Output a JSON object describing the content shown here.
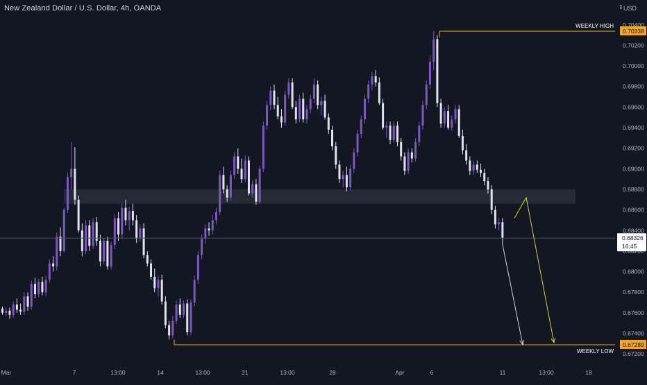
{
  "header": {
    "title": "New Zealand Dollar / U.S. Dollar, 4h, OANDA",
    "currency": "USD",
    "currency_icon": "caret-up-down-icon"
  },
  "colors": {
    "background": "#131722",
    "bull_candle": "#7e57c2",
    "bear_candle": "#e0e3eb",
    "axis_text": "#b2b5be",
    "level_line": "#f5a623",
    "level_tag": "#f5a623",
    "last_price_line": "#4c525e",
    "zone_fill": "#2a2e39",
    "arrow_white": "#d1d4dc",
    "arrow_yellow": "#d6d62e"
  },
  "chart_data": {
    "type": "candlestick",
    "title": "New Zealand Dollar / U.S. Dollar, 4h, OANDA",
    "grid": false,
    "ylim": [
      0.6712,
      0.7052
    ],
    "y_ticks": [
      "0.67200",
      "0.67400",
      "0.67600",
      "0.67800",
      "0.68000",
      "0.68200",
      "0.68400",
      "0.68600",
      "0.68800",
      "0.69000",
      "0.69200",
      "0.69400",
      "0.69600",
      "0.69800",
      "0.70000",
      "0.70200",
      "0.70400"
    ],
    "x_ticks": [
      "Mar",
      "7",
      "13:00",
      "14",
      "13:00",
      "21",
      "13:00",
      "28",
      "Apr",
      "6",
      "11",
      "13:00",
      "18"
    ],
    "last_price": {
      "value": "0.68326",
      "countdown": "16:45"
    },
    "levels": [
      {
        "name": "WEEKLY HIGH",
        "value": 0.70338,
        "tag": "0.70338"
      },
      {
        "name": "WEEKLY LOW",
        "value": 0.67289,
        "tag": "0.67289"
      }
    ],
    "zone": {
      "low": 0.6866,
      "high": 0.688
    },
    "arrows": [
      {
        "color": "white",
        "from": 0.6826,
        "to": 0.6729
      },
      {
        "color": "yellow",
        "path": [
          0.6852,
          0.6872,
          0.6731
        ]
      }
    ],
    "candles": [
      [
        0.6764,
        0.6766,
        0.6758,
        0.676
      ],
      [
        0.676,
        0.6765,
        0.6757,
        0.6762
      ],
      [
        0.6762,
        0.6765,
        0.6754,
        0.6758
      ],
      [
        0.6758,
        0.6771,
        0.6755,
        0.6768
      ],
      [
        0.6768,
        0.6774,
        0.676,
        0.6763
      ],
      [
        0.6763,
        0.6769,
        0.6758,
        0.6761
      ],
      [
        0.6761,
        0.678,
        0.6758,
        0.6776
      ],
      [
        0.6776,
        0.678,
        0.6762,
        0.6766
      ],
      [
        0.6766,
        0.6791,
        0.6763,
        0.6788
      ],
      [
        0.6788,
        0.6794,
        0.6774,
        0.6778
      ],
      [
        0.6778,
        0.6793,
        0.6775,
        0.679
      ],
      [
        0.679,
        0.6795,
        0.6777,
        0.678
      ],
      [
        0.678,
        0.6796,
        0.6776,
        0.6792
      ],
      [
        0.6792,
        0.6812,
        0.6789,
        0.6808
      ],
      [
        0.6808,
        0.6815,
        0.68,
        0.6805
      ],
      [
        0.6805,
        0.6838,
        0.6801,
        0.6834
      ],
      [
        0.6834,
        0.6843,
        0.6815,
        0.682
      ],
      [
        0.682,
        0.6862,
        0.6818,
        0.686
      ],
      [
        0.686,
        0.6896,
        0.6857,
        0.6892
      ],
      [
        0.6892,
        0.6926,
        0.688,
        0.69
      ],
      [
        0.69,
        0.6921,
        0.6865,
        0.687
      ],
      [
        0.687,
        0.6874,
        0.6838,
        0.684
      ],
      [
        0.684,
        0.6847,
        0.6815,
        0.682
      ],
      [
        0.682,
        0.685,
        0.6817,
        0.6845
      ],
      [
        0.6845,
        0.685,
        0.682,
        0.6825
      ],
      [
        0.6825,
        0.6852,
        0.6822,
        0.6848
      ],
      [
        0.6848,
        0.6853,
        0.6825,
        0.683
      ],
      [
        0.683,
        0.6836,
        0.6805,
        0.681
      ],
      [
        0.681,
        0.6833,
        0.6807,
        0.683
      ],
      [
        0.683,
        0.6834,
        0.6802,
        0.6805
      ],
      [
        0.6805,
        0.6829,
        0.6802,
        0.6826
      ],
      [
        0.6826,
        0.6856,
        0.6822,
        0.6852
      ],
      [
        0.6852,
        0.6858,
        0.683,
        0.6836
      ],
      [
        0.6836,
        0.6866,
        0.6832,
        0.6862
      ],
      [
        0.6862,
        0.687,
        0.6845,
        0.685
      ],
      [
        0.685,
        0.6863,
        0.684,
        0.6859
      ],
      [
        0.6859,
        0.6866,
        0.6845,
        0.685
      ],
      [
        0.685,
        0.6855,
        0.6828,
        0.6832
      ],
      [
        0.6832,
        0.6846,
        0.6829,
        0.6842
      ],
      [
        0.6842,
        0.6847,
        0.6813,
        0.6816
      ],
      [
        0.6816,
        0.682,
        0.6805,
        0.6808
      ],
      [
        0.6808,
        0.6812,
        0.6792,
        0.6795
      ],
      [
        0.6795,
        0.6803,
        0.678,
        0.6784
      ],
      [
        0.6784,
        0.6796,
        0.6776,
        0.6792
      ],
      [
        0.6792,
        0.6797,
        0.6768,
        0.6771
      ],
      [
        0.6771,
        0.6776,
        0.6745,
        0.6748
      ],
      [
        0.6748,
        0.6752,
        0.6734,
        0.6738
      ],
      [
        0.6738,
        0.6757,
        0.6735,
        0.6752
      ],
      [
        0.6752,
        0.6772,
        0.6749,
        0.6768
      ],
      [
        0.6768,
        0.6774,
        0.6755,
        0.6758
      ],
      [
        0.6758,
        0.6772,
        0.6755,
        0.6769
      ],
      [
        0.6769,
        0.6773,
        0.6738,
        0.6741
      ],
      [
        0.6741,
        0.6773,
        0.6738,
        0.677
      ],
      [
        0.677,
        0.6796,
        0.6766,
        0.6792
      ],
      [
        0.6792,
        0.682,
        0.6788,
        0.6816
      ],
      [
        0.6816,
        0.6836,
        0.6812,
        0.6832
      ],
      [
        0.6832,
        0.6846,
        0.6827,
        0.6842
      ],
      [
        0.6842,
        0.6848,
        0.6835,
        0.684
      ],
      [
        0.684,
        0.6855,
        0.6836,
        0.685
      ],
      [
        0.685,
        0.6862,
        0.6846,
        0.6858
      ],
      [
        0.6858,
        0.6898,
        0.6855,
        0.6894
      ],
      [
        0.6894,
        0.6902,
        0.6876,
        0.688
      ],
      [
        0.688,
        0.6884,
        0.6868,
        0.6872
      ],
      [
        0.6872,
        0.6898,
        0.6869,
        0.6894
      ],
      [
        0.6894,
        0.6916,
        0.689,
        0.6912
      ],
      [
        0.6912,
        0.692,
        0.6895,
        0.69
      ],
      [
        0.69,
        0.691,
        0.6886,
        0.689
      ],
      [
        0.689,
        0.6913,
        0.6887,
        0.6908
      ],
      [
        0.6908,
        0.6912,
        0.6874,
        0.6876
      ],
      [
        0.6876,
        0.6889,
        0.6872,
        0.6885
      ],
      [
        0.6885,
        0.689,
        0.6865,
        0.6868
      ],
      [
        0.6868,
        0.6903,
        0.6866,
        0.69
      ],
      [
        0.69,
        0.6946,
        0.6897,
        0.6942
      ],
      [
        0.6942,
        0.6966,
        0.6938,
        0.6962
      ],
      [
        0.6962,
        0.698,
        0.6957,
        0.6976
      ],
      [
        0.6976,
        0.6982,
        0.6958,
        0.6962
      ],
      [
        0.6962,
        0.697,
        0.6948,
        0.6951
      ],
      [
        0.6951,
        0.6958,
        0.694,
        0.6945
      ],
      [
        0.6945,
        0.6976,
        0.6942,
        0.6972
      ],
      [
        0.6972,
        0.6988,
        0.6968,
        0.6984
      ],
      [
        0.6984,
        0.6988,
        0.6958,
        0.696
      ],
      [
        0.696,
        0.6966,
        0.6944,
        0.6948
      ],
      [
        0.6948,
        0.6972,
        0.6945,
        0.6968
      ],
      [
        0.6968,
        0.6974,
        0.6945,
        0.6948
      ],
      [
        0.6948,
        0.6962,
        0.6944,
        0.6958
      ],
      [
        0.6958,
        0.6972,
        0.6954,
        0.6968
      ],
      [
        0.6968,
        0.6988,
        0.6964,
        0.6982
      ],
      [
        0.6982,
        0.6986,
        0.6958,
        0.6962
      ],
      [
        0.6962,
        0.697,
        0.6952,
        0.6966
      ],
      [
        0.6966,
        0.6972,
        0.6948,
        0.695
      ],
      [
        0.695,
        0.6954,
        0.6934,
        0.6938
      ],
      [
        0.6938,
        0.6942,
        0.6918,
        0.6922
      ],
      [
        0.6922,
        0.6926,
        0.69,
        0.6904
      ],
      [
        0.6904,
        0.6908,
        0.6886,
        0.689
      ],
      [
        0.689,
        0.6898,
        0.6882,
        0.6894
      ],
      [
        0.6894,
        0.6902,
        0.6878,
        0.6882
      ],
      [
        0.6882,
        0.6904,
        0.6879,
        0.69
      ],
      [
        0.69,
        0.692,
        0.6896,
        0.6916
      ],
      [
        0.6916,
        0.6938,
        0.6912,
        0.6934
      ],
      [
        0.6934,
        0.6952,
        0.693,
        0.6948
      ],
      [
        0.6948,
        0.6972,
        0.6944,
        0.6968
      ],
      [
        0.6968,
        0.6986,
        0.6964,
        0.6982
      ],
      [
        0.6982,
        0.6994,
        0.6976,
        0.699
      ],
      [
        0.699,
        0.6996,
        0.698,
        0.6984
      ],
      [
        0.6984,
        0.6989,
        0.6962,
        0.6964
      ],
      [
        0.6964,
        0.6968,
        0.6938,
        0.694
      ],
      [
        0.694,
        0.6946,
        0.693,
        0.6942
      ],
      [
        0.6942,
        0.6946,
        0.6924,
        0.6928
      ],
      [
        0.6928,
        0.6946,
        0.6925,
        0.6942
      ],
      [
        0.6942,
        0.6946,
        0.6922,
        0.6926
      ],
      [
        0.6926,
        0.693,
        0.6908,
        0.6912
      ],
      [
        0.6912,
        0.6916,
        0.6894,
        0.6898
      ],
      [
        0.6898,
        0.692,
        0.6895,
        0.6916
      ],
      [
        0.6916,
        0.692,
        0.6906,
        0.691
      ],
      [
        0.691,
        0.693,
        0.6907,
        0.6926
      ],
      [
        0.6926,
        0.6946,
        0.6922,
        0.6942
      ],
      [
        0.6942,
        0.6966,
        0.6938,
        0.6962
      ],
      [
        0.6962,
        0.6986,
        0.6958,
        0.6982
      ],
      [
        0.6982,
        0.701,
        0.6978,
        0.7004
      ],
      [
        0.7004,
        0.7034,
        0.6996,
        0.7026
      ],
      [
        0.7026,
        0.703,
        0.696,
        0.6964
      ],
      [
        0.6964,
        0.6968,
        0.694,
        0.6944
      ],
      [
        0.6944,
        0.696,
        0.694,
        0.6956
      ],
      [
        0.6956,
        0.6962,
        0.6938,
        0.694
      ],
      [
        0.694,
        0.6952,
        0.6937,
        0.6948
      ],
      [
        0.6948,
        0.6962,
        0.6944,
        0.6958
      ],
      [
        0.6958,
        0.6962,
        0.693,
        0.6932
      ],
      [
        0.6932,
        0.6938,
        0.6914,
        0.6918
      ],
      [
        0.6918,
        0.6924,
        0.6904,
        0.6908
      ],
      [
        0.6908,
        0.6912,
        0.6894,
        0.6898
      ],
      [
        0.6898,
        0.6908,
        0.6894,
        0.6904
      ],
      [
        0.6904,
        0.6908,
        0.6896,
        0.6899
      ],
      [
        0.6899,
        0.6905,
        0.6892,
        0.6896
      ],
      [
        0.6896,
        0.69,
        0.6884,
        0.6888
      ],
      [
        0.6888,
        0.6892,
        0.6876,
        0.688
      ],
      [
        0.688,
        0.6884,
        0.6856,
        0.686
      ],
      [
        0.686,
        0.6864,
        0.6842,
        0.6846
      ],
      [
        0.6846,
        0.6852,
        0.684,
        0.6848
      ],
      [
        0.6848,
        0.6852,
        0.6826,
        0.6833
      ]
    ]
  },
  "annotations": {
    "weekly_high_label": "WEEKLY HIGH",
    "weekly_low_label": "WEEKLY LOW",
    "weekly_high_tag": "0.70338",
    "weekly_low_tag": "0.67289",
    "last_price_tag": "0.68326",
    "countdown_tag": "16:45"
  }
}
